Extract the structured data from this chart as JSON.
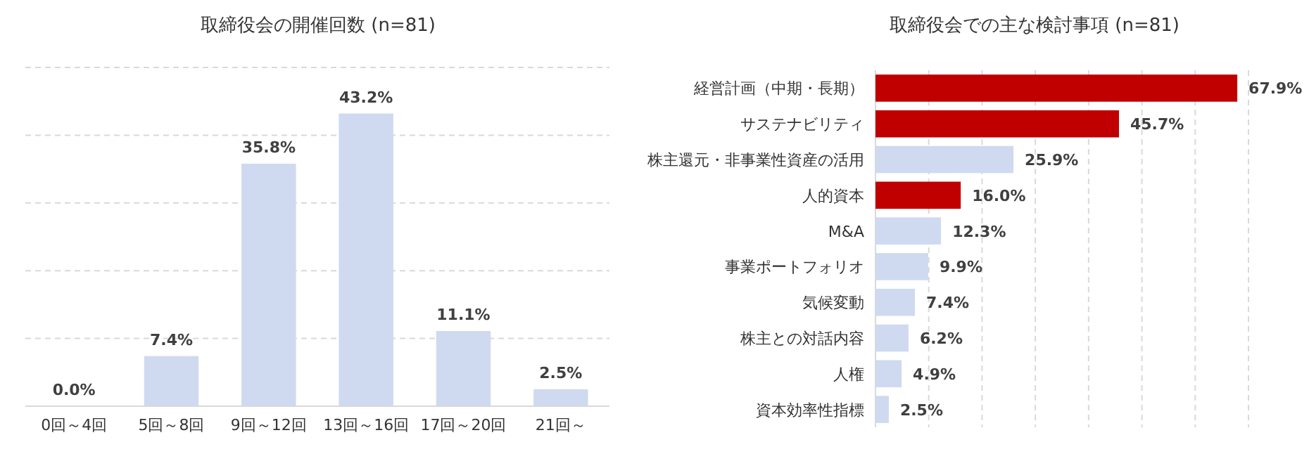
{
  "chart_data": [
    {
      "type": "bar",
      "title": "取締役会の開催回数 (n=81)",
      "categories": [
        "0回～4回",
        "5回～8回",
        "9回～12回",
        "13回～16回",
        "17回～20回",
        "21回～"
      ],
      "values": [
        0.0,
        7.4,
        35.8,
        43.2,
        11.1,
        2.5
      ],
      "value_labels": [
        "0.0%",
        "7.4%",
        "35.8%",
        "43.2%",
        "11.1%",
        "2.5%"
      ],
      "color": "#cfdaf0",
      "ylim": [
        0,
        50
      ],
      "yticks": [
        {
          "value": 10,
          "label": null
        },
        {
          "value": 20,
          "label": null
        },
        {
          "value": 30,
          "label": null
        },
        {
          "value": 40,
          "label": null
        },
        {
          "value": 50,
          "label": null
        }
      ],
      "grid": "y",
      "tick_labels": "x"
    },
    {
      "type": "bar",
      "orientation": "horizontal",
      "title": "取締役会での主な検討事項 (n=81)",
      "categories": [
        "経営計画（中期・長期）",
        "サステナビリティ",
        "株主還元・非事業性資産の活用",
        "人的資本",
        "M&A",
        "事業ポートフォリオ",
        "気候変動",
        "株主との対話内容",
        "人権",
        "資本効率性指標"
      ],
      "values": [
        67.9,
        45.7,
        25.9,
        16.0,
        12.3,
        9.9,
        7.4,
        6.2,
        4.9,
        2.5
      ],
      "value_labels": [
        "67.9%",
        "45.7%",
        "25.9%",
        "16.0%",
        "12.3%",
        "9.9%",
        "7.4%",
        "6.2%",
        "4.9%",
        "2.5%"
      ],
      "colors": [
        "#c00000",
        "#c00000",
        "#cfdaf0",
        "#c00000",
        "#cfdaf0",
        "#cfdaf0",
        "#cfdaf0",
        "#cfdaf0",
        "#cfdaf0",
        "#cfdaf0"
      ],
      "xlim": [
        0,
        70
      ],
      "xticks": [
        {
          "value": 10,
          "label": null
        },
        {
          "value": 20,
          "label": null
        },
        {
          "value": 30,
          "label": null
        },
        {
          "value": 40,
          "label": null
        },
        {
          "value": 50,
          "label": null
        },
        {
          "value": 60,
          "label": null
        },
        {
          "value": 70,
          "label": null
        }
      ],
      "grid": "x",
      "tick_labels": "y"
    }
  ]
}
